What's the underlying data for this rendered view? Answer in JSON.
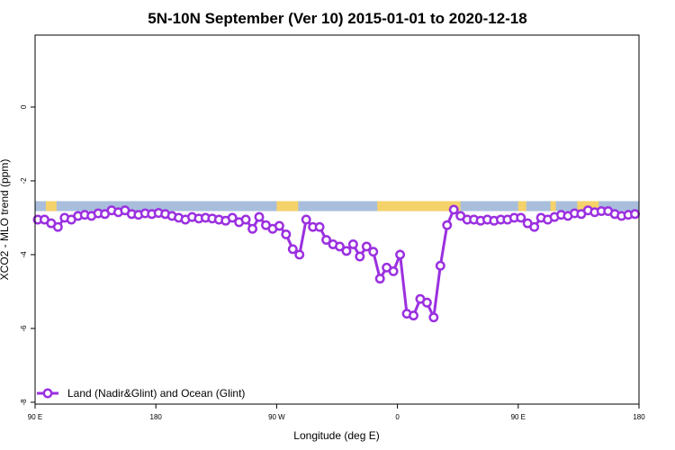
{
  "chart_data": {
    "type": "line",
    "title": "5N-10N September (Ver 10)   2015-01-01 to 2020-12-18",
    "xlabel": "Longitude (deg E)",
    "ylabel": "XCO2 - MLO trend (ppm)",
    "x_tick_labels": [
      "90 E",
      "180",
      "90 W",
      "0",
      "90 E",
      "180"
    ],
    "y_tick_labels": [
      "0",
      "-2",
      "-4",
      "-6",
      "-8"
    ],
    "x_ticks": [
      90,
      180,
      270,
      360,
      450,
      540
    ],
    "y_ticks": [
      0,
      -2,
      -4,
      -6,
      -8
    ],
    "xlim": [
      90,
      540
    ],
    "ylim": [
      -8.05,
      1.95
    ],
    "grid": false,
    "legend_position": "bottom-left",
    "colors": {
      "series": "#9b30e0",
      "ocean_band": "#a8bedc",
      "land_band": "#f5d26a"
    },
    "map_band": {
      "y_top": -2.55,
      "y_bottom": -2.82,
      "land_segments": [
        [
          98,
          106
        ],
        [
          270,
          286
        ],
        [
          345,
          407
        ],
        [
          450,
          456
        ],
        [
          474,
          478
        ],
        [
          494,
          510
        ]
      ]
    },
    "series": [
      {
        "name": "Land (Nadir&Glint) and Ocean (Glint)",
        "x": [
          92,
          97,
          102,
          107,
          112,
          117,
          122,
          127,
          132,
          137,
          142,
          147,
          152,
          157,
          162,
          167,
          172,
          177,
          182,
          187,
          192,
          197,
          202,
          207,
          212,
          217,
          222,
          227,
          232,
          237,
          242,
          247,
          252,
          257,
          262,
          267,
          272,
          277,
          282,
          287,
          292,
          297,
          302,
          307,
          312,
          317,
          322,
          327,
          332,
          337,
          342,
          347,
          352,
          357,
          362,
          367,
          372,
          377,
          382,
          387,
          392,
          397,
          402,
          407,
          412,
          417,
          422,
          427,
          432,
          437,
          442,
          447,
          452,
          457,
          462,
          467,
          472,
          477,
          482,
          487,
          492,
          497,
          502,
          507,
          512,
          517,
          522,
          527,
          532,
          537
        ],
        "values": [
          -3.05,
          -3.05,
          -3.15,
          -3.25,
          -3.0,
          -3.05,
          -2.95,
          -2.92,
          -2.95,
          -2.88,
          -2.9,
          -2.8,
          -2.85,
          -2.8,
          -2.9,
          -2.92,
          -2.88,
          -2.9,
          -2.87,
          -2.9,
          -2.95,
          -3.0,
          -3.05,
          -2.98,
          -3.02,
          -3.0,
          -3.02,
          -3.05,
          -3.08,
          -3.0,
          -3.12,
          -3.05,
          -3.3,
          -2.98,
          -3.2,
          -3.3,
          -3.22,
          -3.45,
          -3.85,
          -4.0,
          -3.05,
          -3.25,
          -3.25,
          -3.6,
          -3.72,
          -3.78,
          -3.9,
          -3.72,
          -4.05,
          -3.78,
          -3.92,
          -4.65,
          -4.35,
          -4.45,
          -4.0,
          -5.6,
          -5.65,
          -5.2,
          -5.3,
          -5.7,
          -4.3,
          -3.2,
          -2.78,
          -2.95,
          -3.05,
          -3.05,
          -3.08,
          -3.05,
          -3.08,
          -3.05,
          -3.05,
          -3.0,
          -3.0,
          -3.15,
          -3.25,
          -3.0,
          -3.05,
          -2.98,
          -2.92,
          -2.95,
          -2.88,
          -2.9,
          -2.8,
          -2.85,
          -2.82,
          -2.82,
          -2.9,
          -2.95,
          -2.92,
          -2.9
        ]
      }
    ]
  }
}
